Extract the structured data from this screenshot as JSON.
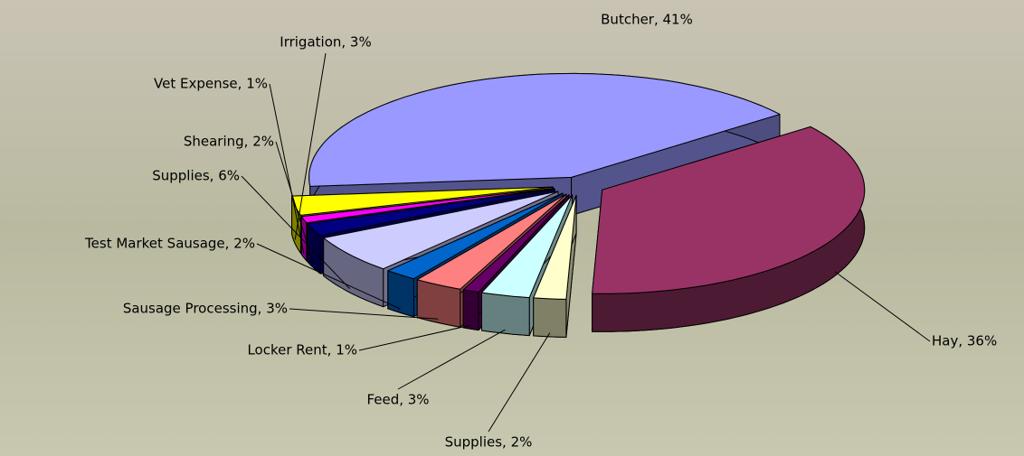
{
  "chart_data": {
    "type": "pie3d",
    "values": [
      41,
      36,
      2,
      3,
      1,
      3,
      2,
      6,
      2,
      1,
      3
    ],
    "value_labels": [
      "Butcher, 41%",
      "Hay, 36%",
      "Supplies, 2%",
      "Feed, 3%",
      "Locker Rent, 1%",
      "Sausage Processing, 3%",
      "Test Market Sausage, 2%",
      "Supplies, 6%",
      "Shearing, 2%",
      "Vet Expense, 1%",
      "Irrigation, 3%"
    ],
    "colors": [
      "#9999ff",
      "#993366",
      "#ffffcc",
      "#ccffff",
      "#660066",
      "#ff8080",
      "#0066cc",
      "#ccccff",
      "#000080",
      "#ff00ff",
      "#ffff00"
    ]
  }
}
